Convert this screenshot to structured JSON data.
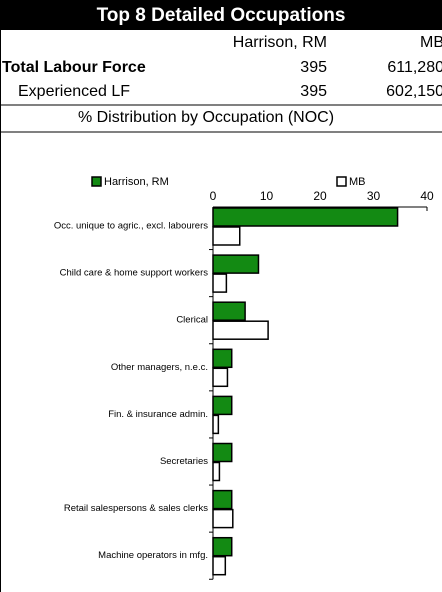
{
  "table": {
    "title": "Top 8 Detailed Occupations",
    "columns": [
      "Harrison, RM",
      "MB"
    ],
    "rows": [
      [
        "Total Labour Force",
        "395",
        "611,280"
      ],
      [
        "Experienced LF",
        "395",
        "602,150"
      ]
    ],
    "section": "% Distribution by Occupation (NOC)"
  },
  "chart_data": {
    "type": "bar",
    "orientation": "horizontal",
    "categories": [
      "Occ. unique to agric., excl. labourers",
      "Child care & home support workers",
      "Clerical",
      "Other managers, n.e.c.",
      "Fin. & insurance admin.",
      "Secretaries",
      "Retail salespersons & sales clerks",
      "Machine operators in mfg."
    ],
    "series": [
      {
        "name": "Harrison, RM",
        "color": "#138a13",
        "values": [
          34.5,
          8.5,
          6,
          3.5,
          3.5,
          3.5,
          3.5,
          3.5
        ]
      },
      {
        "name": "MB",
        "color": "#ffffff",
        "values": [
          5,
          2.5,
          10.3,
          2.7,
          1,
          1.2,
          3.7,
          2.3
        ]
      }
    ],
    "xlim": [
      0,
      40
    ],
    "xticks": [
      0,
      10,
      20,
      30,
      40
    ],
    "legend": "top"
  }
}
